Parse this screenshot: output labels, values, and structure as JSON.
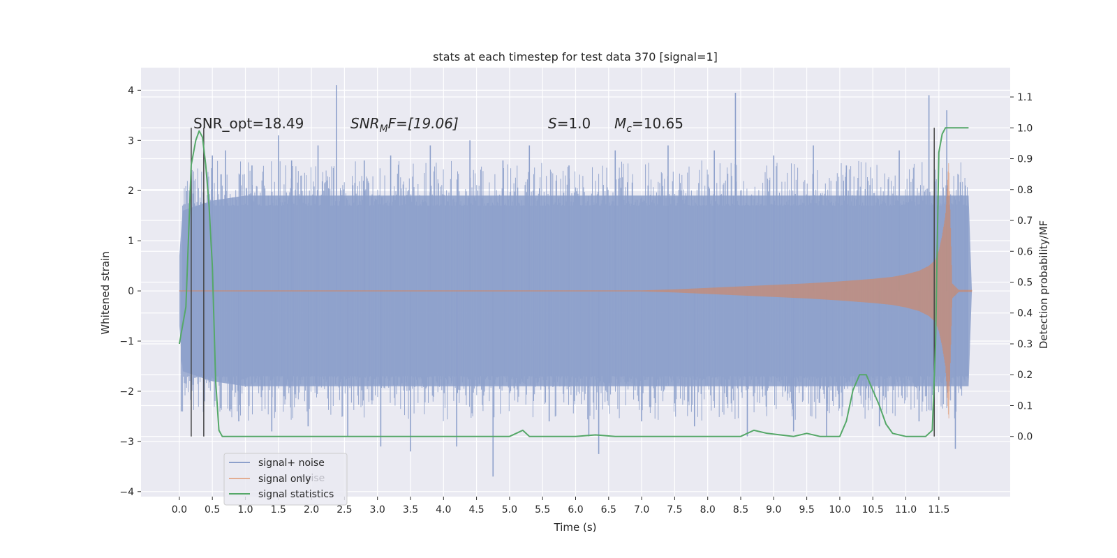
{
  "chart_data": {
    "type": "line",
    "title": "stats at each timestep for test data 370 [signal=1]",
    "xlabel": "Time (s)",
    "ylabel_left": "Whitened strain",
    "ylabel_right": "Detection probability/MF",
    "xlim": [
      -0.58,
      12.58
    ],
    "ylim_left": [
      -4.1,
      4.45
    ],
    "ylim_right": [
      -0.195,
      1.195
    ],
    "x_ticks": [
      "0.0",
      "0.5",
      "1.0",
      "1.5",
      "2.0",
      "2.5",
      "3.0",
      "3.5",
      "4.0",
      "4.5",
      "5.0",
      "5.5",
      "6.0",
      "6.5",
      "7.0",
      "7.5",
      "8.0",
      "8.5",
      "9.0",
      "9.5",
      "10.0",
      "10.5",
      "11.0",
      "11.5"
    ],
    "y_ticks_left": [
      "4",
      "3",
      "2",
      "1",
      "0",
      "−1",
      "−2",
      "−3",
      "−4"
    ],
    "y_ticks_right": [
      "1.1",
      "1.0",
      "0.9",
      "0.8",
      "0.7",
      "0.6",
      "0.5",
      "0.4",
      "0.3",
      "0.2",
      "0.1",
      "0.0"
    ],
    "grid": true,
    "legend": {
      "placement": "lower-left",
      "entries": [
        {
          "label": "signal+ noise",
          "color": "#8da0cb"
        },
        {
          "label": "signal only",
          "color": "#dd8452"
        },
        {
          "label": "signal statistics",
          "color": "#55a868"
        }
      ],
      "ghost_text": "noise"
    },
    "annotations": {
      "snr_opt": "SNR_opt=18.49",
      "snr_mf_main": "SNR",
      "snr_mf_sub": "M",
      "snr_mf_rest": "F=[19.06]",
      "s_main": "S",
      "s_rest": "=1.0",
      "mc_main": "M",
      "mc_sub": "c",
      "mc_rest": "=10.65"
    },
    "noise_envelope": {
      "x": [
        0.0,
        0.05,
        0.5,
        1.0,
        2.0,
        3.0,
        4.0,
        5.0,
        6.0,
        7.0,
        8.0,
        9.0,
        10.0,
        10.5,
        11.0,
        11.5,
        11.95,
        12.0
      ],
      "upper": [
        0.7,
        1.6,
        1.8,
        1.9,
        1.9,
        1.9,
        1.9,
        1.9,
        1.9,
        1.9,
        1.9,
        1.9,
        1.9,
        1.9,
        1.9,
        1.9,
        1.9,
        0.0
      ],
      "lower": [
        -0.7,
        -1.6,
        -1.8,
        -1.9,
        -1.9,
        -1.9,
        -1.9,
        -1.9,
        -1.9,
        -1.9,
        -1.9,
        -1.9,
        -1.9,
        -1.9,
        -1.9,
        -1.9,
        -1.9,
        0.0
      ]
    },
    "noise_spikes": [
      {
        "x": 0.03,
        "y": -2.4
      },
      {
        "x": 0.22,
        "y": 2.2
      },
      {
        "x": 0.38,
        "y": -2.2
      },
      {
        "x": 0.5,
        "y": 2.7
      },
      {
        "x": 0.7,
        "y": 2.8
      },
      {
        "x": 0.9,
        "y": -2.6
      },
      {
        "x": 1.1,
        "y": 2.5
      },
      {
        "x": 1.4,
        "y": -2.8
      },
      {
        "x": 1.5,
        "y": 3.1
      },
      {
        "x": 1.7,
        "y": 2.6
      },
      {
        "x": 1.95,
        "y": -2.7
      },
      {
        "x": 2.1,
        "y": 2.9
      },
      {
        "x": 2.38,
        "y": 4.1
      },
      {
        "x": 2.55,
        "y": -2.9
      },
      {
        "x": 2.8,
        "y": 2.6
      },
      {
        "x": 3.05,
        "y": -3.1
      },
      {
        "x": 3.2,
        "y": 2.7
      },
      {
        "x": 3.5,
        "y": -3.2
      },
      {
        "x": 3.8,
        "y": 2.9
      },
      {
        "x": 4.2,
        "y": -3.1
      },
      {
        "x": 4.4,
        "y": 3.0
      },
      {
        "x": 4.75,
        "y": -3.7
      },
      {
        "x": 4.9,
        "y": 2.6
      },
      {
        "x": 5.3,
        "y": 2.9
      },
      {
        "x": 5.6,
        "y": -2.6
      },
      {
        "x": 5.9,
        "y": 2.5
      },
      {
        "x": 6.2,
        "y": -2.9
      },
      {
        "x": 6.35,
        "y": -3.25
      },
      {
        "x": 6.6,
        "y": 2.8
      },
      {
        "x": 7.0,
        "y": -2.6
      },
      {
        "x": 7.4,
        "y": 2.9
      },
      {
        "x": 7.8,
        "y": -2.7
      },
      {
        "x": 8.1,
        "y": 2.8
      },
      {
        "x": 8.42,
        "y": 3.95
      },
      {
        "x": 8.6,
        "y": -2.9
      },
      {
        "x": 9.0,
        "y": 2.7
      },
      {
        "x": 9.3,
        "y": -2.8
      },
      {
        "x": 9.6,
        "y": 2.9
      },
      {
        "x": 9.8,
        "y": -2.9
      },
      {
        "x": 10.1,
        "y": 2.5
      },
      {
        "x": 10.6,
        "y": -2.7
      },
      {
        "x": 10.9,
        "y": 2.8
      },
      {
        "x": 11.2,
        "y": -2.6
      },
      {
        "x": 11.35,
        "y": 3.9
      },
      {
        "x": 11.62,
        "y": 3.6
      },
      {
        "x": 11.75,
        "y": -3.15
      },
      {
        "x": 11.9,
        "y": 2.1
      }
    ],
    "signal_envelope": {
      "x": [
        0.0,
        7.0,
        7.5,
        8.0,
        8.5,
        9.0,
        9.5,
        10.0,
        10.5,
        10.8,
        11.0,
        11.2,
        11.35,
        11.45,
        11.5,
        11.55,
        11.6,
        11.65,
        11.7,
        11.8,
        12.0
      ],
      "amplitude": [
        0.01,
        0.01,
        0.03,
        0.06,
        0.09,
        0.12,
        0.15,
        0.19,
        0.24,
        0.28,
        0.33,
        0.4,
        0.5,
        0.62,
        0.8,
        1.1,
        1.5,
        2.6,
        0.15,
        0.02,
        0.02
      ]
    },
    "signal_statistics": {
      "x": [
        0.0,
        0.1,
        0.18,
        0.25,
        0.3,
        0.35,
        0.4,
        0.45,
        0.5,
        0.55,
        0.6,
        0.65,
        0.7,
        0.75,
        1.0,
        2.0,
        3.0,
        3.5,
        4.0,
        5.0,
        5.1,
        5.2,
        5.3,
        5.5,
        6.0,
        6.3,
        6.6,
        7.0,
        8.0,
        8.5,
        8.7,
        8.9,
        9.3,
        9.5,
        9.7,
        10.0,
        10.1,
        10.2,
        10.3,
        10.4,
        10.5,
        10.6,
        10.7,
        10.8,
        11.0,
        11.3,
        11.4,
        11.45,
        11.5,
        11.55,
        11.6,
        11.7,
        11.8,
        11.95
      ],
      "values": [
        0.3,
        0.42,
        0.88,
        0.96,
        0.99,
        0.97,
        0.88,
        0.75,
        0.55,
        0.18,
        0.02,
        0.0,
        0.0,
        0.0,
        0.0,
        0.0,
        0.0,
        0.0,
        0.0,
        0.0,
        0.01,
        0.02,
        0.0,
        0.0,
        0.0,
        0.005,
        0.0,
        0.0,
        0.0,
        0.0,
        0.02,
        0.01,
        0.0,
        0.01,
        0.0,
        0.0,
        0.05,
        0.15,
        0.2,
        0.2,
        0.15,
        0.1,
        0.04,
        0.01,
        0.0,
        0.0,
        0.02,
        0.3,
        0.92,
        0.98,
        1.0,
        1.0,
        1.0,
        1.0
      ]
    },
    "vertical_lines": [
      0.18,
      0.37,
      11.43
    ]
  }
}
